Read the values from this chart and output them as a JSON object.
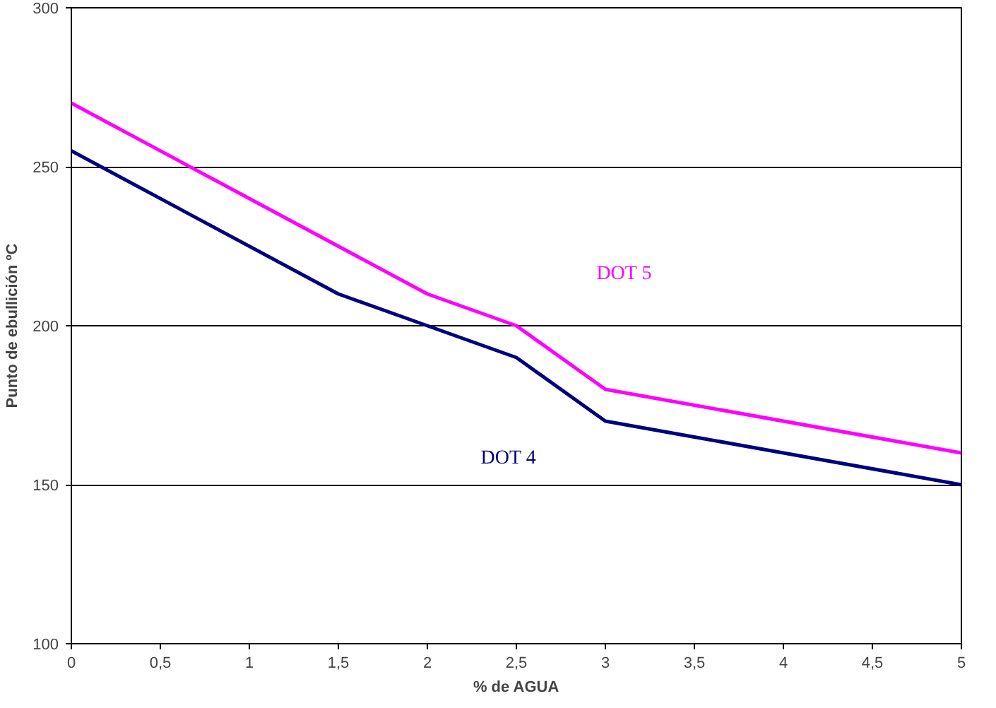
{
  "chart_data": {
    "type": "line",
    "xlabel": "% de AGUA",
    "ylabel": "Punto de ebullición ºC",
    "xlim": [
      0,
      5
    ],
    "ylim": [
      100,
      300
    ],
    "xticks": [
      0,
      {
        "value": 0.5,
        "label": "0,5"
      },
      1,
      {
        "value": 1.5,
        "label": "1,5"
      },
      2,
      {
        "value": 2.5,
        "label": "2,5"
      },
      3,
      {
        "value": 3.5,
        "label": "3,5"
      },
      4,
      {
        "value": 4.5,
        "label": "4,5"
      },
      5
    ],
    "yticks": [
      100,
      150,
      200,
      250,
      300
    ],
    "grid": "y",
    "legend": false,
    "series": [
      {
        "name": "DOT 4",
        "color": "#000080",
        "x": [
          0,
          1.5,
          2,
          2.5,
          3,
          3.5,
          4,
          5
        ],
        "values": [
          255,
          210,
          200,
          190,
          170,
          165,
          160,
          150
        ]
      },
      {
        "name": "DOT 5",
        "color": "#ff00ff",
        "x": [
          0,
          1.5,
          2,
          2.5,
          3,
          5
        ],
        "values": [
          270,
          225,
          210,
          200,
          180,
          160
        ]
      }
    ]
  }
}
